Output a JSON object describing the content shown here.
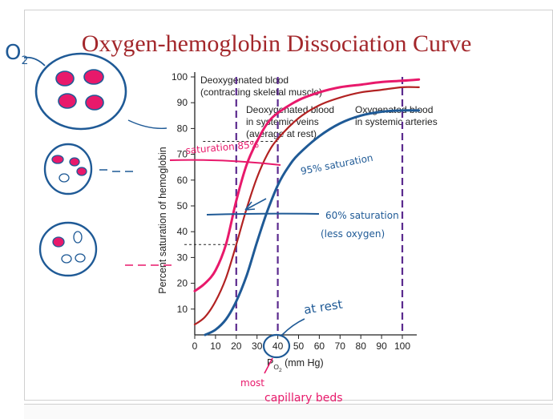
{
  "title": "Oxygen-hemoglobin Dissociation Curve",
  "chart_data": {
    "type": "line",
    "xlabel_main": "P",
    "xlabel_sub1": "O",
    "xlabel_sub2": "2",
    "xlabel_tail": " (mm Hg)",
    "ylabel": "Percent saturation of hemoglobin",
    "xlim": [
      0,
      100
    ],
    "ylim": [
      0,
      100
    ],
    "x_ticks": [
      "0",
      "10",
      "20",
      "30",
      "40",
      "50",
      "60",
      "70",
      "80",
      "90",
      "100"
    ],
    "y_ticks": [
      "10",
      "20",
      "30",
      "40",
      "50",
      "60",
      "70",
      "80",
      "90",
      "100"
    ],
    "series": [
      {
        "color": "#e8196b",
        "x": [
          0,
          5,
          10,
          15,
          20,
          25,
          30,
          35,
          40,
          50,
          60,
          70,
          80,
          90,
          100,
          108
        ],
        "y": [
          17,
          20,
          25,
          35,
          52,
          66,
          75,
          82,
          86,
          91,
          94,
          96,
          97,
          98,
          98.5,
          99
        ]
      },
      {
        "color": "#b22222",
        "x": [
          0,
          5,
          10,
          15,
          20,
          25,
          30,
          35,
          40,
          50,
          60,
          70,
          80,
          90,
          100,
          108
        ],
        "y": [
          4,
          7,
          13,
          22,
          35,
          49,
          61,
          70,
          76,
          84,
          89,
          92,
          94,
          95,
          96,
          96
        ]
      },
      {
        "color": "#1f5a96",
        "x": [
          5,
          10,
          15,
          20,
          25,
          30,
          35,
          40,
          45,
          50,
          60,
          70,
          80,
          90,
          100,
          108
        ],
        "y": [
          0,
          2,
          6,
          13,
          23,
          36,
          48,
          58,
          65,
          70,
          77,
          82,
          85,
          86.5,
          87,
          87
        ]
      }
    ],
    "vlines": [
      20,
      40,
      100
    ],
    "hlines": [
      {
        "y": 35,
        "x0": -5,
        "x1": 20
      },
      {
        "y": 75,
        "x0": 4,
        "x1": 40
      }
    ],
    "annotations": {
      "deoxy_muscle_1": "Deoxygenated blood",
      "deoxy_muscle_2": "(contracting skeletal muscle)",
      "deoxy_veins_1": "Deoxygenated blood",
      "deoxy_veins_2": "in systemic veins",
      "deoxy_veins_3": "(average at rest)",
      "oxy_arteries_1": "Oxygenated blood",
      "oxy_arteries_2": "in systemic arteries"
    }
  },
  "handwriting": {
    "o2_label": "O",
    "o2_sub": "2",
    "sat85": "saturation 85%",
    "sat95": "95% saturation",
    "sat60_1": "60% saturation",
    "sat60_2": "(less oxygen)",
    "at_rest": "at rest",
    "most": "most",
    "capillary": "capillary beds",
    "ink_pink": "#e8196b",
    "ink_blue": "#1f5a96"
  }
}
